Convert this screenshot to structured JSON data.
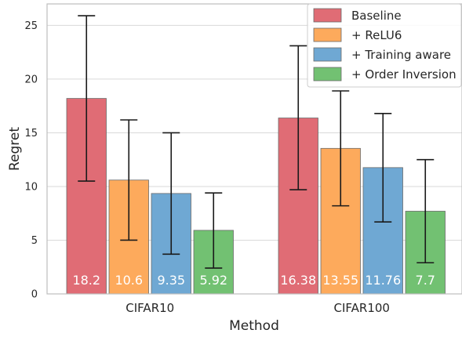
{
  "chart_data": {
    "type": "bar",
    "title": "",
    "xlabel": "Method",
    "ylabel": "Regret",
    "ylim": [
      0,
      27
    ],
    "yticks": [
      0,
      5,
      10,
      15,
      20,
      25
    ],
    "grid": "horizontal",
    "legend_position": "top-right",
    "categories": [
      "CIFAR10",
      "CIFAR100"
    ],
    "series": [
      {
        "name": "Baseline",
        "color": "#e06c75",
        "values": [
          18.2,
          16.38
        ],
        "value_labels": [
          "18.2",
          "16.38"
        ],
        "err_low": [
          10.5,
          9.7
        ],
        "err_high": [
          25.9,
          23.1
        ]
      },
      {
        "name": "+ ReLU6",
        "color": "#fdaa5c",
        "values": [
          10.6,
          13.55
        ],
        "value_labels": [
          "10.6",
          "13.55"
        ],
        "err_low": [
          5.0,
          8.2
        ],
        "err_high": [
          16.2,
          18.9
        ]
      },
      {
        "name": "+ Training aware",
        "color": "#6fa8d3",
        "values": [
          9.35,
          11.76
        ],
        "value_labels": [
          "9.35",
          "11.76"
        ],
        "err_low": [
          3.7,
          6.7
        ],
        "err_high": [
          15.0,
          16.8
        ]
      },
      {
        "name": "+ Order Inversion",
        "color": "#72c172",
        "values": [
          5.92,
          7.7
        ],
        "value_labels": [
          "5.92",
          "7.7"
        ],
        "err_low": [
          2.4,
          2.9
        ],
        "err_high": [
          9.4,
          12.5
        ]
      }
    ]
  }
}
